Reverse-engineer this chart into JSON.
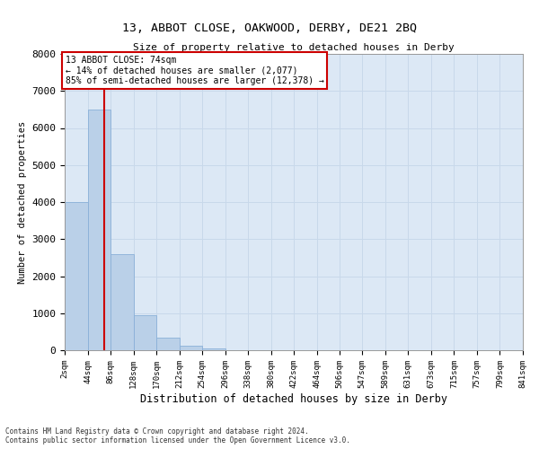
{
  "title_line1": "13, ABBOT CLOSE, OAKWOOD, DERBY, DE21 2BQ",
  "title_line2": "Size of property relative to detached houses in Derby",
  "xlabel": "Distribution of detached houses by size in Derby",
  "ylabel": "Number of detached properties",
  "footer_line1": "Contains HM Land Registry data © Crown copyright and database right 2024.",
  "footer_line2": "Contains public sector information licensed under the Open Government Licence v3.0.",
  "annotation_line1": "13 ABBOT CLOSE: 74sqm",
  "annotation_line2": "← 14% of detached houses are smaller (2,077)",
  "annotation_line3": "85% of semi-detached houses are larger (12,378) →",
  "property_size_sqm": 74,
  "bin_edges": [
    2,
    44,
    86,
    128,
    170,
    212,
    254,
    296,
    338,
    380,
    422,
    464,
    506,
    547,
    589,
    631,
    673,
    715,
    757,
    799,
    841
  ],
  "bar_heights": [
    4000,
    6500,
    2600,
    950,
    340,
    120,
    50,
    10,
    0,
    0,
    0,
    0,
    0,
    0,
    0,
    0,
    0,
    0,
    0,
    0
  ],
  "bar_color": "#bad0e8",
  "bar_edge_color": "#8ab0d8",
  "grid_color": "#c8d8ea",
  "background_color": "#dce8f5",
  "vline_color": "#cc0000",
  "annotation_box_color": "#cc0000",
  "ylim": [
    0,
    8000
  ],
  "yticks": [
    0,
    1000,
    2000,
    3000,
    4000,
    5000,
    6000,
    7000,
    8000
  ]
}
